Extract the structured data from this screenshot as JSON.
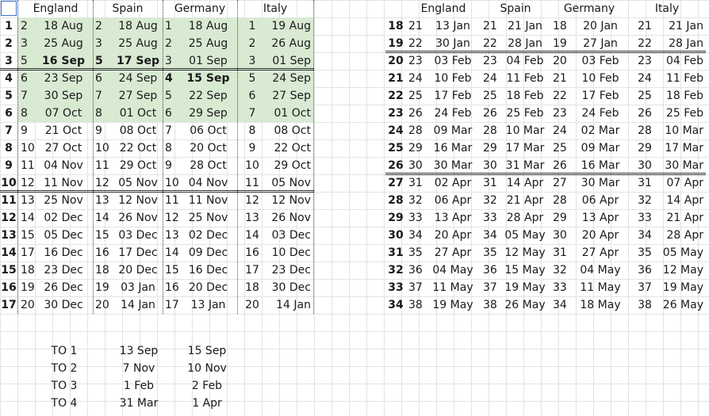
{
  "headers": {
    "england": "England",
    "spain": "Spain",
    "germany": "Germany",
    "italy": "Italy"
  },
  "left_rows": [
    {
      "idx": "1",
      "e_no": "2",
      "e_date": "18 Aug",
      "s_no": "2",
      "s_date": "18 Aug",
      "g_no": "1",
      "g_date": "18 Aug",
      "i_no": "1",
      "i_date": "19 Aug"
    },
    {
      "idx": "2",
      "e_no": "3",
      "e_date": "25 Aug",
      "s_no": "3",
      "s_date": "25 Aug",
      "g_no": "2",
      "g_date": "25 Aug",
      "i_no": "2",
      "i_date": "26 Aug"
    },
    {
      "idx": "3",
      "e_no": "5",
      "e_date": "16 Sep",
      "s_no": "5",
      "s_date": "17 Sep",
      "g_no": "3",
      "g_date": "01 Sep",
      "i_no": "3",
      "i_date": "01 Sep"
    },
    {
      "idx": "4",
      "e_no": "6",
      "e_date": "23 Sep",
      "s_no": "6",
      "s_date": "24 Sep",
      "g_no": "4",
      "g_date": "15 Sep",
      "i_no": "5",
      "i_date": "24 Sep"
    },
    {
      "idx": "5",
      "e_no": "7",
      "e_date": "30 Sep",
      "s_no": "7",
      "s_date": "27 Sep",
      "g_no": "5",
      "g_date": "22 Sep",
      "i_no": "6",
      "i_date": "27 Sep"
    },
    {
      "idx": "6",
      "e_no": "8",
      "e_date": "07 Oct",
      "s_no": "8",
      "s_date": "01 Oct",
      "g_no": "6",
      "g_date": "29 Sep",
      "i_no": "7",
      "i_date": "01 Oct"
    },
    {
      "idx": "7",
      "e_no": "9",
      "e_date": "21 Oct",
      "s_no": "9",
      "s_date": "08 Oct",
      "g_no": "7",
      "g_date": "06 Oct",
      "i_no": "8",
      "i_date": "08 Oct"
    },
    {
      "idx": "8",
      "e_no": "10",
      "e_date": "27 Oct",
      "s_no": "10",
      "s_date": "22 Oct",
      "g_no": "8",
      "g_date": "20 Oct",
      "i_no": "9",
      "i_date": "22 Oct"
    },
    {
      "idx": "9",
      "e_no": "11",
      "e_date": "04 Nov",
      "s_no": "11",
      "s_date": "29 Oct",
      "g_no": "9",
      "g_date": "28 Oct",
      "i_no": "10",
      "i_date": "29 Oct"
    },
    {
      "idx": "10",
      "e_no": "12",
      "e_date": "11 Nov",
      "s_no": "12",
      "s_date": "05 Nov",
      "g_no": "10",
      "g_date": "04 Nov",
      "i_no": "11",
      "i_date": "05 Nov"
    },
    {
      "idx": "11",
      "e_no": "13",
      "e_date": "25 Nov",
      "s_no": "13",
      "s_date": "12 Nov",
      "g_no": "11",
      "g_date": "11 Nov",
      "i_no": "12",
      "i_date": "12 Nov"
    },
    {
      "idx": "12",
      "e_no": "14",
      "e_date": "02 Dec",
      "s_no": "14",
      "s_date": "26 Nov",
      "g_no": "12",
      "g_date": "25 Nov",
      "i_no": "13",
      "i_date": "26 Nov"
    },
    {
      "idx": "13",
      "e_no": "15",
      "e_date": "05 Dec",
      "s_no": "15",
      "s_date": "03 Dec",
      "g_no": "13",
      "g_date": "02 Dec",
      "i_no": "14",
      "i_date": "03 Dec"
    },
    {
      "idx": "14",
      "e_no": "17",
      "e_date": "16 Dec",
      "s_no": "16",
      "s_date": "17 Dec",
      "g_no": "14",
      "g_date": "09 Dec",
      "i_no": "16",
      "i_date": "10 Dec"
    },
    {
      "idx": "15",
      "e_no": "18",
      "e_date": "23 Dec",
      "s_no": "18",
      "s_date": "20 Dec",
      "g_no": "15",
      "g_date": "16 Dec",
      "i_no": "17",
      "i_date": "23 Dec"
    },
    {
      "idx": "16",
      "e_no": "19",
      "e_date": "26 Dec",
      "s_no": "19",
      "s_date": "03 Jan",
      "g_no": "16",
      "g_date": "20 Dec",
      "i_no": "18",
      "i_date": "30 Dec"
    },
    {
      "idx": "17",
      "e_no": "20",
      "e_date": "30 Dec",
      "s_no": "20",
      "s_date": "14 Jan",
      "g_no": "17",
      "g_date": "13 Jan",
      "i_no": "20",
      "i_date": "14 Jan"
    }
  ],
  "right_rows": [
    {
      "idx": "18",
      "e_no": "21",
      "e_date": "13 Jan",
      "s_no": "21",
      "s_date": "21 Jan",
      "g_no": "18",
      "g_date": "20 Jan",
      "i_no": "21",
      "i_date": "21 Jan"
    },
    {
      "idx": "19",
      "e_no": "22",
      "e_date": "30 Jan",
      "s_no": "22",
      "s_date": "28 Jan",
      "g_no": "19",
      "g_date": "27 Jan",
      "i_no": "22",
      "i_date": "28 Jan"
    },
    {
      "idx": "20",
      "e_no": "23",
      "e_date": "03 Feb",
      "s_no": "23",
      "s_date": "04 Feb",
      "g_no": "20",
      "g_date": "03 Feb",
      "i_no": "23",
      "i_date": "04 Feb"
    },
    {
      "idx": "21",
      "e_no": "24",
      "e_date": "10 Feb",
      "s_no": "24",
      "s_date": "11 Feb",
      "g_no": "21",
      "g_date": "10 Feb",
      "i_no": "24",
      "i_date": "11 Feb"
    },
    {
      "idx": "22",
      "e_no": "25",
      "e_date": "17 Feb",
      "s_no": "25",
      "s_date": "18 Feb",
      "g_no": "22",
      "g_date": "17 Feb",
      "i_no": "25",
      "i_date": "18 Feb"
    },
    {
      "idx": "23",
      "e_no": "26",
      "e_date": "24 Feb",
      "s_no": "26",
      "s_date": "25 Feb",
      "g_no": "23",
      "g_date": "24 Feb",
      "i_no": "26",
      "i_date": "25 Feb"
    },
    {
      "idx": "24",
      "e_no": "28",
      "e_date": "09 Mar",
      "s_no": "28",
      "s_date": "10 Mar",
      "g_no": "24",
      "g_date": "02 Mar",
      "i_no": "28",
      "i_date": "10 Mar"
    },
    {
      "idx": "25",
      "e_no": "29",
      "e_date": "16 Mar",
      "s_no": "29",
      "s_date": "17 Mar",
      "g_no": "25",
      "g_date": "09 Mar",
      "i_no": "29",
      "i_date": "17 Mar"
    },
    {
      "idx": "26",
      "e_no": "30",
      "e_date": "30 Mar",
      "s_no": "30",
      "s_date": "31 Mar",
      "g_no": "26",
      "g_date": "16 Mar",
      "i_no": "30",
      "i_date": "30 Mar"
    },
    {
      "idx": "27",
      "e_no": "31",
      "e_date": "02 Apr",
      "s_no": "31",
      "s_date": "14 Apr",
      "g_no": "27",
      "g_date": "30 Mar",
      "i_no": "31",
      "i_date": "07 Apr"
    },
    {
      "idx": "28",
      "e_no": "32",
      "e_date": "06 Apr",
      "s_no": "32",
      "s_date": "21 Apr",
      "g_no": "28",
      "g_date": "06 Apr",
      "i_no": "32",
      "i_date": "14 Apr"
    },
    {
      "idx": "29",
      "e_no": "33",
      "e_date": "13 Apr",
      "s_no": "33",
      "s_date": "28 Apr",
      "g_no": "29",
      "g_date": "13 Apr",
      "i_no": "33",
      "i_date": "21 Apr"
    },
    {
      "idx": "30",
      "e_no": "34",
      "e_date": "20 Apr",
      "s_no": "34",
      "s_date": "05 May",
      "g_no": "30",
      "g_date": "20 Apr",
      "i_no": "34",
      "i_date": "28 Apr"
    },
    {
      "idx": "31",
      "e_no": "35",
      "e_date": "27 Apr",
      "s_no": "35",
      "s_date": "12 May",
      "g_no": "31",
      "g_date": "27 Apr",
      "i_no": "35",
      "i_date": "05 May"
    },
    {
      "idx": "32",
      "e_no": "36",
      "e_date": "04 May",
      "s_no": "36",
      "s_date": "15 May",
      "g_no": "32",
      "g_date": "04 May",
      "i_no": "36",
      "i_date": "12 May"
    },
    {
      "idx": "33",
      "e_no": "37",
      "e_date": "11 May",
      "s_no": "37",
      "s_date": "19 May",
      "g_no": "33",
      "g_date": "11 May",
      "i_no": "37",
      "i_date": "19 May"
    },
    {
      "idx": "34",
      "e_no": "38",
      "e_date": "19 May",
      "s_no": "38",
      "s_date": "26 May",
      "g_no": "34",
      "g_date": "18 May",
      "i_no": "38",
      "i_date": "26 May"
    }
  ],
  "bold_left": {
    "england": [
      2
    ],
    "spain": [
      2
    ],
    "germany": [
      3
    ]
  },
  "bold_right": {
    "idx": true
  },
  "totals": [
    {
      "label": "TO 1",
      "a": "13 Sep",
      "b": "15 Sep"
    },
    {
      "label": "TO 2",
      "a": "7 Nov",
      "b": "10 Nov"
    },
    {
      "label": "TO 3",
      "a": "1 Feb",
      "b": "2 Feb"
    },
    {
      "label": "TO 4",
      "a": "31 Mar",
      "b": "1 Apr"
    }
  ],
  "colors": {
    "highlight": "#d9ead3",
    "grid": "#e3e3e3",
    "selection": "#3b73d9"
  }
}
